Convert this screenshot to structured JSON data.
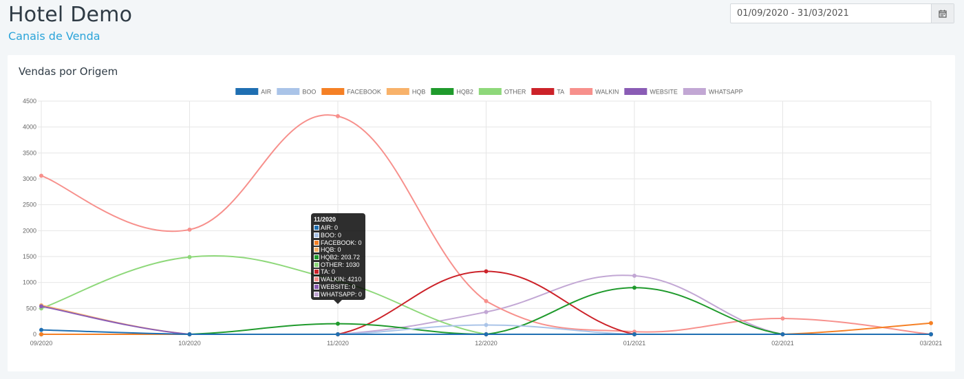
{
  "header": {
    "title": "Hotel Demo",
    "subtitle": "Canais de Venda",
    "date_range": "01/09/2020 - 31/03/2021",
    "calendar_icon": "calendar-icon"
  },
  "panel": {
    "title": "Vendas por Origem"
  },
  "chart_data": {
    "type": "line",
    "title": "Vendas por Origem",
    "categories": [
      "09/2020",
      "10/2020",
      "11/2020",
      "12/2020",
      "01/2021",
      "02/2021",
      "03/2021"
    ],
    "ylim": [
      0,
      4500
    ],
    "yticks": [
      0,
      500,
      1000,
      1500,
      2000,
      2500,
      3000,
      3500,
      4000,
      4500
    ],
    "grid": true,
    "legend_position": "top",
    "series": [
      {
        "name": "AIR",
        "color": "#1f6fb2",
        "values": [
          85,
          0,
          0,
          0,
          0,
          0,
          0
        ]
      },
      {
        "name": "BOO",
        "color": "#aac4e8",
        "values": [
          0,
          0,
          0,
          180,
          0,
          0,
          0
        ]
      },
      {
        "name": "FACEBOOK",
        "color": "#f58025",
        "values": [
          0,
          0,
          0,
          0,
          0,
          0,
          215
        ]
      },
      {
        "name": "HQB",
        "color": "#f8b26a",
        "values": [
          560,
          0,
          0,
          0,
          0,
          0,
          0
        ]
      },
      {
        "name": "HQB2",
        "color": "#1f9a2c",
        "values": [
          0,
          0,
          203.72,
          0,
          900,
          0,
          0
        ]
      },
      {
        "name": "OTHER",
        "color": "#8ed87a",
        "values": [
          500,
          1490,
          1030,
          0,
          0,
          0,
          0
        ]
      },
      {
        "name": "TA",
        "color": "#cc2229",
        "values": [
          0,
          0,
          0,
          1215,
          0,
          0,
          0
        ]
      },
      {
        "name": "WALKIN",
        "color": "#f7908c",
        "values": [
          3060,
          2020,
          4210,
          640,
          50,
          305,
          0
        ]
      },
      {
        "name": "WEBSITE",
        "color": "#8a5cb5",
        "values": [
          540,
          0,
          0,
          0,
          0,
          0,
          0
        ]
      },
      {
        "name": "WHATSAPP",
        "color": "#c2a7d4",
        "values": [
          0,
          0,
          0,
          430,
          1130,
          0,
          0
        ]
      }
    ],
    "tooltip": {
      "category": "11/2020",
      "rows": [
        "AIR: 0",
        "BOO: 0",
        "FACEBOOK: 0",
        "HQB: 0",
        "HQB2: 203.72",
        "OTHER: 1030",
        "TA: 0",
        "WALKIN: 4210",
        "WEBSITE: 0",
        "WHATSAPP: 0"
      ]
    }
  }
}
